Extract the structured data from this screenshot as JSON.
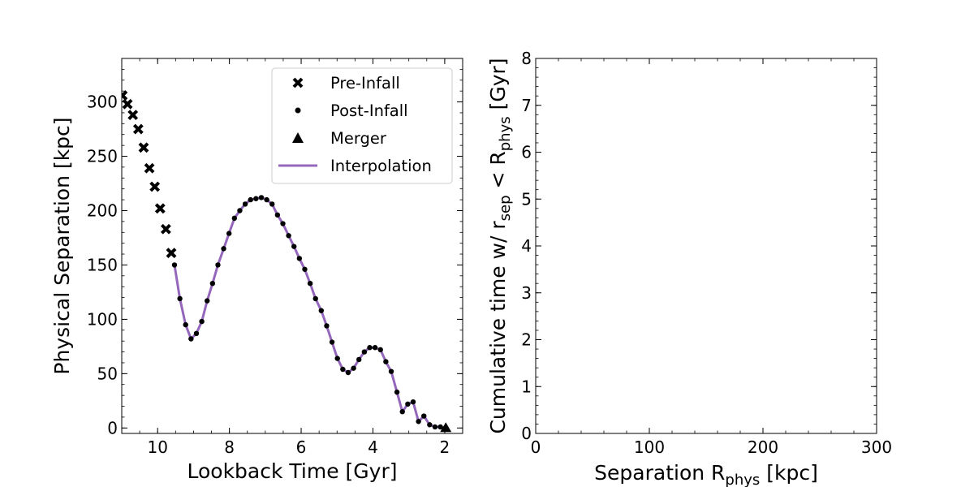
{
  "chart_data": [
    {
      "type": "line",
      "xlabel": "Lookback Time [Gyr]",
      "ylabel": "Physical Separation [kpc]",
      "xlim": [
        11.0,
        1.5
      ],
      "ylim": [
        -5,
        340
      ],
      "x_reversed": true,
      "xticks": [
        10,
        8,
        6,
        4,
        2
      ],
      "xtick_labels": [
        "10",
        "8",
        "6",
        "4",
        "2"
      ],
      "yticks": [
        0,
        50,
        100,
        150,
        200,
        250,
        300
      ],
      "ytick_labels": [
        "0",
        "50",
        "100",
        "150",
        "200",
        "250",
        "300"
      ],
      "grid": false,
      "legend_position": "top-right",
      "series": [
        {
          "name": "Pre-Infall",
          "marker": "x",
          "color": "#000000",
          "x": [
            10.98,
            10.84,
            10.69,
            10.54,
            10.39,
            10.23,
            10.08,
            9.93,
            9.77,
            9.62
          ],
          "y": [
            306,
            298,
            288,
            275,
            258,
            239,
            222,
            202,
            183,
            161
          ]
        },
        {
          "name": "Post-Infall",
          "marker": "dot",
          "color": "#000000",
          "x": [
            9.53,
            9.38,
            9.22,
            9.07,
            8.92,
            8.77,
            8.62,
            8.47,
            8.32,
            8.16,
            8.01,
            7.86,
            7.71,
            7.56,
            7.41,
            7.26,
            7.11,
            6.96,
            6.81,
            6.66,
            6.51,
            6.35,
            6.2,
            6.05,
            5.9,
            5.75,
            5.6,
            5.44,
            5.29,
            5.14,
            4.99,
            4.84,
            4.69,
            4.54,
            4.39,
            4.24,
            4.09,
            3.94,
            3.79,
            3.64,
            3.49,
            3.33,
            3.18,
            3.03,
            2.88,
            2.73,
            2.58,
            2.42,
            2.27,
            2.12,
            1.97
          ],
          "y": [
            150,
            119,
            95,
            82,
            87,
            98,
            117,
            133,
            150,
            165,
            179,
            193,
            200,
            206,
            210,
            211,
            212,
            210,
            206,
            196,
            188,
            177,
            167,
            156,
            146,
            133,
            119,
            108,
            94,
            79,
            64,
            54,
            51,
            55,
            63,
            70,
            74,
            74,
            72,
            61,
            52,
            33,
            15,
            22,
            24,
            6,
            11,
            3,
            1,
            1,
            0
          ]
        },
        {
          "name": "Merger",
          "marker": "triangle",
          "color": "#000000",
          "x": [
            1.97
          ],
          "y": [
            0
          ]
        },
        {
          "name": "Interpolation",
          "marker": "line",
          "color": "#9467bd",
          "x_from": "Post-Infall"
        }
      ]
    },
    {
      "type": "line",
      "xlabel_main": "Separation R",
      "xlabel_sub": "phys",
      "xlabel_tail": " [kpc]",
      "ylabel_main": "Cumulative time w/ r",
      "ylabel_sub1": "sep",
      "ylabel_mid": " < R",
      "ylabel_sub2": "phys",
      "ylabel_tail": " [Gyr]",
      "xlim": [
        0,
        300
      ],
      "ylim": [
        0,
        8
      ],
      "xticks": [
        0,
        100,
        200,
        300
      ],
      "xtick_labels": [
        "0",
        "100",
        "200",
        "300"
      ],
      "yticks": [
        0,
        1,
        2,
        3,
        4,
        5,
        6,
        7,
        8
      ],
      "ytick_labels": [
        "0",
        "1",
        "2",
        "3",
        "4",
        "5",
        "6",
        "7",
        "8"
      ],
      "grid": false,
      "series": []
    }
  ]
}
